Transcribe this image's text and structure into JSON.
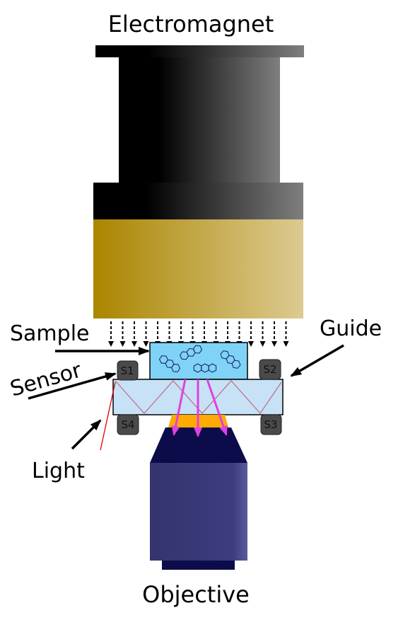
{
  "labels": {
    "electromagnet": "Electromagnet",
    "sample": "Sample",
    "guide": "Guide",
    "sensor": "Sensor",
    "light": "Light",
    "objective": "Objective"
  },
  "sensors": [
    "S1",
    "S2",
    "S3",
    "S4"
  ],
  "colors": {
    "magnet_dark": "#000000",
    "magnet_light": "#7f7f7f",
    "pole_dark": "#aa8500",
    "pole_light": "#dccb91",
    "sample_fill": "#7fd3f7",
    "guide_fill": "#c7e2f6",
    "zigzag": "#c0708a",
    "emission": "#e040e0",
    "filter": "#ffaa00",
    "objective_dark": "#0c0c4a",
    "objective_body": "#3a3a7c",
    "light_ray": "#e00000"
  }
}
